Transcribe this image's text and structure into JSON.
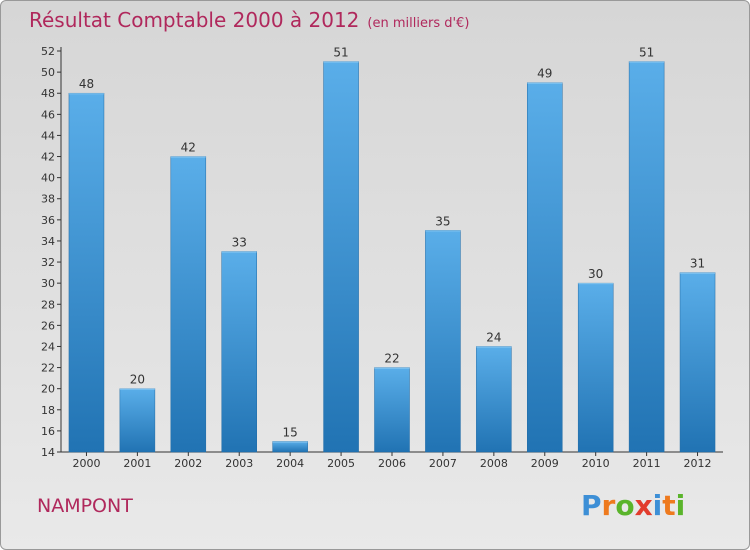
{
  "chart_data": {
    "type": "bar",
    "title": "Résultat Comptable 2000 à 2012",
    "subtitle": "(en milliers d'€)",
    "categories": [
      "2000",
      "2001",
      "2002",
      "2003",
      "2004",
      "2005",
      "2006",
      "2007",
      "2008",
      "2009",
      "2010",
      "2011",
      "2012"
    ],
    "values": [
      48,
      20,
      42,
      33,
      15,
      51,
      22,
      35,
      24,
      49,
      30,
      51,
      31
    ],
    "ylim": [
      14,
      52
    ],
    "yticks": [
      14,
      16,
      18,
      20,
      22,
      24,
      26,
      28,
      30,
      32,
      34,
      36,
      38,
      40,
      42,
      44,
      46,
      48,
      50,
      52
    ],
    "xlabel": "",
    "ylabel": "",
    "grid": false,
    "bar_color_top": "#5aaee9",
    "bar_color_bottom": "#2173b3"
  },
  "footer": {
    "location": "NAMPONT",
    "brand_letters": [
      "P",
      "r",
      "o",
      "x",
      "i",
      "t",
      "i"
    ]
  },
  "colors": {
    "accent": "#b0285c"
  }
}
